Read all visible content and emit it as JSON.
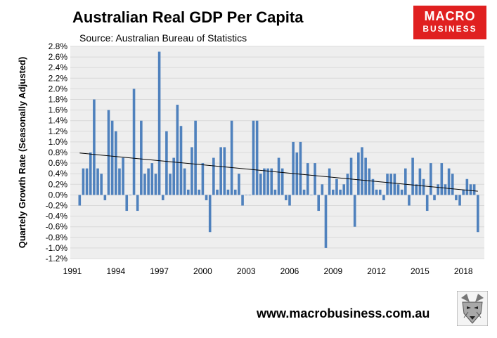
{
  "header": {
    "title": "Australian Real GDP Per Capita",
    "subtitle": "Source: Australian Bureau of Statistics"
  },
  "logo": {
    "line1": "MACRO",
    "line2": "BUSINESS"
  },
  "footer": {
    "website": "www.macrobusiness.com.au",
    "mascot_icon": "wolf-icon"
  },
  "colors": {
    "bar": "#4f81bd",
    "plot_bg": "#eeeeee",
    "trend": "#000000",
    "logo_bg": "#e02020"
  },
  "chart_data": {
    "type": "bar",
    "title": "Australian Real GDP Per Capita",
    "ylabel": "Quartely Growth Rate (Seasonally Adjusted)",
    "xlabel": "",
    "ylim": [
      -1.2,
      2.8
    ],
    "y_ticks": [
      "2.8%",
      "2.6%",
      "2.4%",
      "2.2%",
      "2.0%",
      "1.8%",
      "1.6%",
      "1.4%",
      "1.2%",
      "1.0%",
      "0.8%",
      "0.6%",
      "0.4%",
      "0.2%",
      "0.0%",
      "-0.2%",
      "-0.4%",
      "-0.6%",
      "-0.8%",
      "-1.0%",
      "-1.2%"
    ],
    "x_ticks": [
      "1991",
      "1994",
      "1997",
      "2000",
      "2003",
      "2006",
      "2009",
      "2012",
      "2015",
      "2018"
    ],
    "series": [
      {
        "name": "Quarterly growth",
        "start_quarter": "1991 Q3",
        "values": [
          -0.2,
          0.5,
          0.5,
          0.8,
          1.8,
          0.5,
          0.4,
          -0.1,
          1.6,
          1.4,
          1.2,
          0.5,
          0.7,
          -0.3,
          0.0,
          2.0,
          -0.3,
          1.4,
          0.4,
          0.5,
          0.6,
          0.4,
          2.7,
          -0.1,
          1.2,
          0.4,
          0.7,
          1.7,
          1.3,
          0.5,
          0.1,
          0.9,
          1.4,
          0.1,
          0.6,
          -0.1,
          -0.7,
          0.7,
          0.1,
          0.9,
          0.9,
          0.1,
          1.4,
          0.1,
          0.4,
          -0.2,
          0.0,
          0.0,
          1.4,
          1.4,
          0.4,
          0.5,
          0.5,
          0.5,
          0.1,
          0.7,
          0.5,
          -0.1,
          -0.2,
          1.0,
          0.8,
          1.0,
          0.1,
          0.6,
          0.0,
          0.6,
          -0.3,
          0.2,
          -1.0,
          0.5,
          0.1,
          0.3,
          0.1,
          0.2,
          0.4,
          0.7,
          -0.6,
          0.8,
          0.9,
          0.7,
          0.5,
          0.3,
          0.1,
          0.1,
          -0.1,
          0.4,
          0.4,
          0.4,
          0.2,
          0.1,
          0.5,
          -0.2,
          0.7,
          0.2,
          0.5,
          0.3,
          -0.3,
          0.6,
          -0.1,
          0.2,
          0.6,
          0.2,
          0.5,
          0.4,
          -0.1,
          -0.2,
          0.1,
          0.3,
          0.2,
          0.2,
          -0.7
        ]
      }
    ],
    "trendline": {
      "type": "linear",
      "start": 0.79,
      "end": 0.07
    }
  }
}
